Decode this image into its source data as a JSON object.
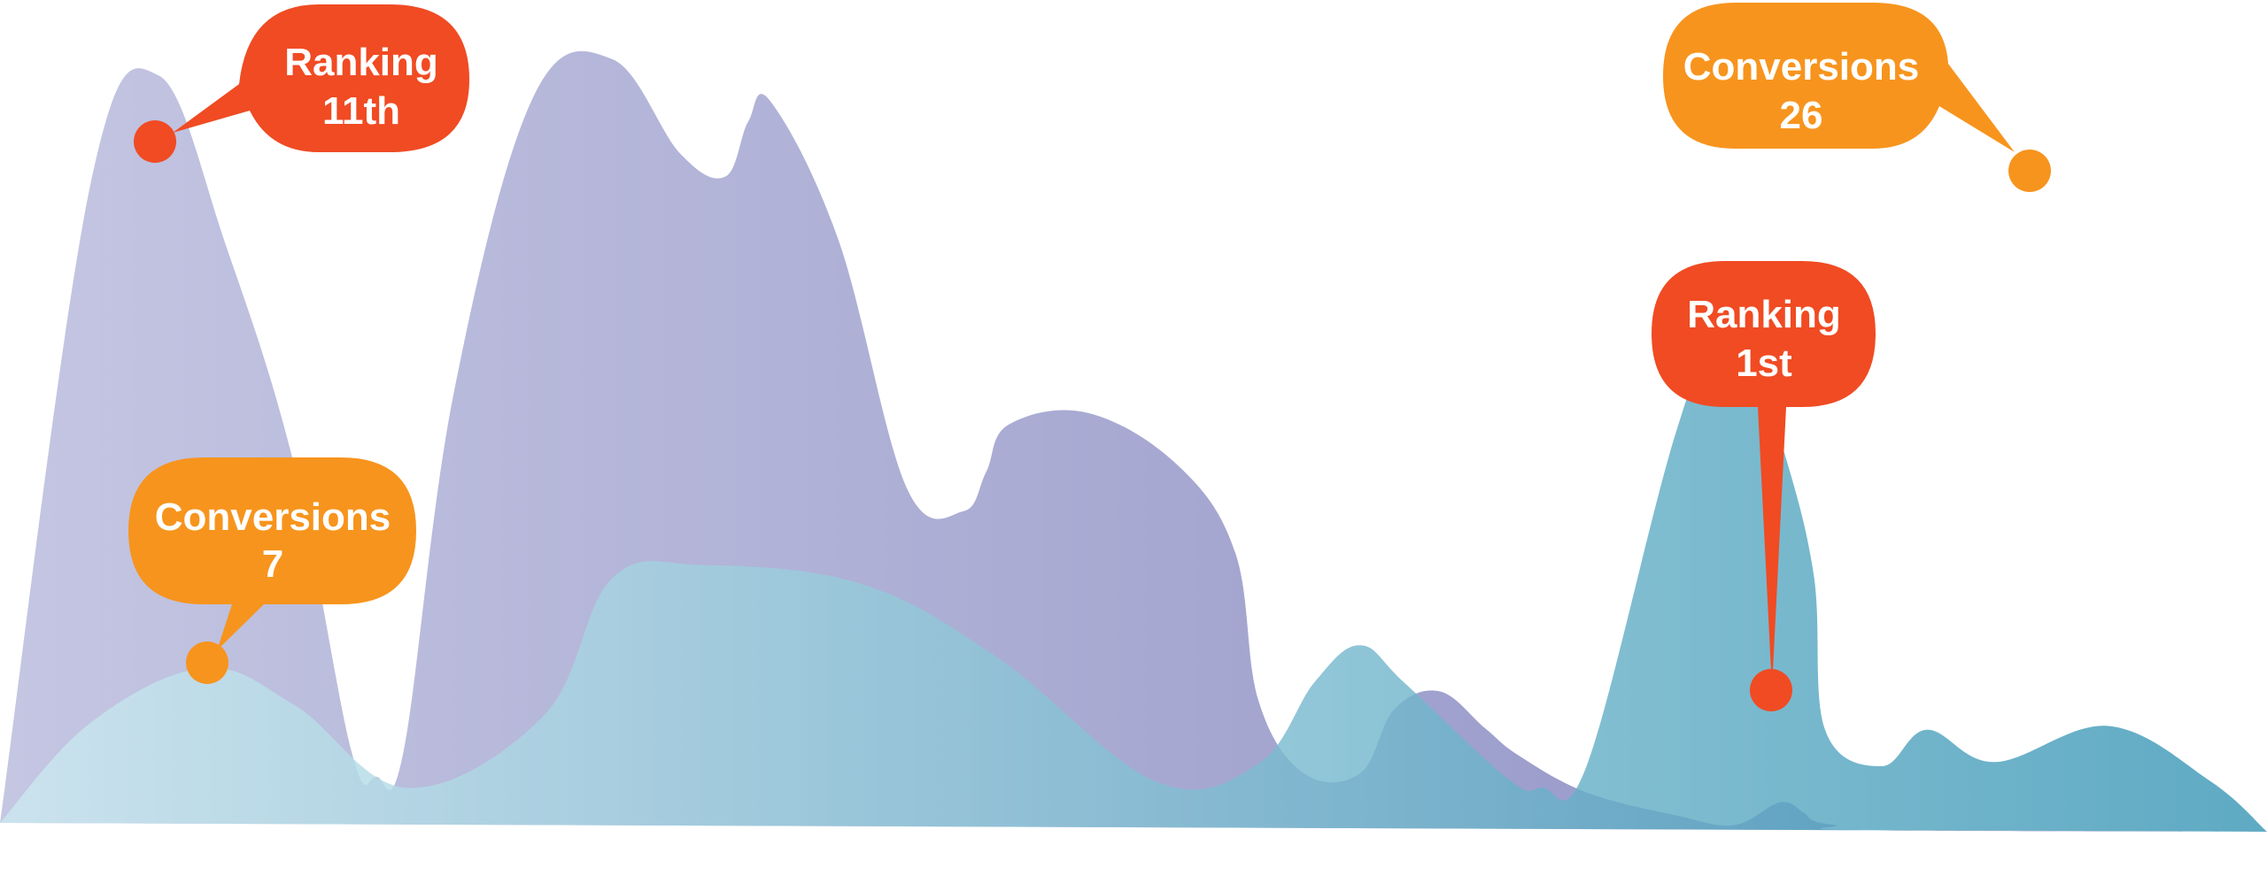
{
  "chart_data": {
    "type": "area",
    "title": "",
    "xlabel": "",
    "ylabel": "",
    "grid": false,
    "legend": "none",
    "series": [
      {
        "key": "ranking",
        "color_start": "#c4c6e2",
        "color_end": "#8b8cc2",
        "x": [
          0,
          0.04,
          0.07,
          0.1,
          0.13,
          0.155,
          0.166,
          0.178,
          0.2,
          0.235,
          0.27,
          0.3,
          0.32,
          0.33,
          0.34,
          0.37,
          0.4,
          0.425,
          0.435,
          0.445,
          0.48,
          0.52,
          0.545,
          0.555,
          0.575,
          0.6,
          0.615,
          0.635,
          0.655,
          0.67,
          0.7,
          0.74,
          0.765,
          0.785,
          0.795,
          0.8,
          0.81,
          0.82,
          1.0
        ],
        "values": [
          0,
          700,
          818,
          630,
          390,
          80,
          52,
          80,
          470,
          795,
          838,
          735,
          710,
          770,
          792,
          640,
          370,
          345,
          388,
          440,
          453,
          395,
          300,
          140,
          60,
          60,
          130,
          150,
          110,
          80,
          40,
          15,
          5,
          30,
          20,
          10,
          5,
          0,
          0
        ]
      },
      {
        "key": "conversions",
        "color_start": "#cce9f0",
        "color_end": "#3b97b6",
        "x": [
          0,
          0.04,
          0.09,
          0.13,
          0.18,
          0.24,
          0.27,
          0.31,
          0.38,
          0.44,
          0.51,
          0.555,
          0.58,
          0.6,
          0.62,
          0.665,
          0.68,
          0.7,
          0.74,
          0.765,
          0.785,
          0.8,
          0.805,
          0.83,
          0.85,
          0.88,
          0.93,
          0.975,
          1.0
        ],
        "values": [
          0,
          110,
          170,
          130,
          40,
          120,
          270,
          285,
          265,
          185,
          50,
          70,
          160,
          200,
          158,
          55,
          45,
          70,
          440,
          575,
          430,
          280,
          110,
          70,
          110,
          75,
          115,
          55,
          0
        ]
      }
    ],
    "annotations": [
      {
        "series": "ranking",
        "label": "Ranking",
        "value": "11th",
        "color": "#f04b23"
      },
      {
        "series": "conversions",
        "label": "Conversions",
        "value": "7",
        "color": "#f7941d"
      },
      {
        "series": "ranking",
        "label": "Ranking",
        "value": "1st",
        "color": "#f04b23"
      },
      {
        "series": "conversions",
        "label": "Conversions",
        "value": "26",
        "color": "#f7941d"
      }
    ]
  }
}
